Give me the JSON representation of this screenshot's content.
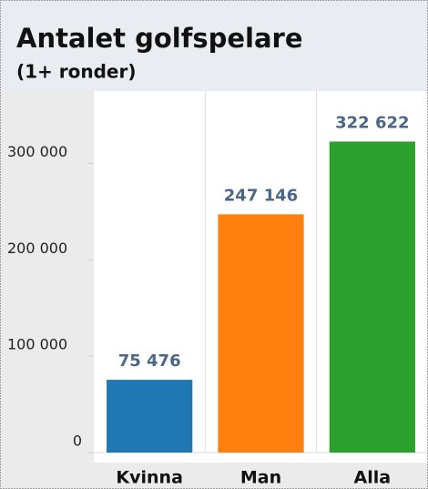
{
  "chart_data": {
    "type": "bar",
    "title": "Antalet golfspelare",
    "subtitle": "(1+ ronder)",
    "categories": [
      "Kvinna",
      "Man",
      "Alla"
    ],
    "values": [
      75476,
      247146,
      322622
    ],
    "value_labels": [
      "75 476",
      "247 146",
      "322 622"
    ],
    "colors": [
      "#1f77b4",
      "#ff7f0e",
      "#2ca02c"
    ],
    "ylim": [
      0,
      375000
    ],
    "yticks": [
      0,
      {
        "value": 100000,
        "label": "100 000"
      },
      {
        "value": 200000,
        "label": "200 000"
      },
      {
        "value": 300000,
        "label": "300 000"
      }
    ],
    "grid": false
  }
}
